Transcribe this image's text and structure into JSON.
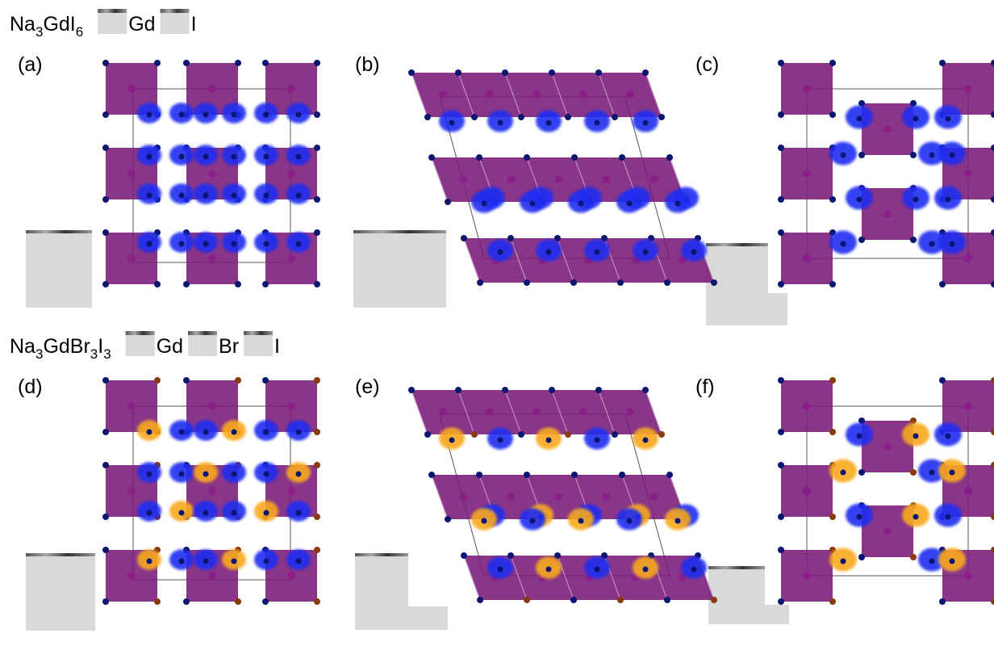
{
  "rows": [
    {
      "formula": [
        "Na",
        "3",
        "GdI",
        "6"
      ],
      "legend": [
        "Gd",
        "I"
      ],
      "panels": [
        "(a)",
        "(b)",
        "(c)"
      ]
    },
    {
      "formula": [
        "Na",
        "3",
        "GdBr",
        "3",
        "I",
        "3"
      ],
      "legend": [
        "Gd",
        "Br",
        "I"
      ],
      "panels": [
        "(d)",
        "(e)",
        "(f)"
      ]
    }
  ]
}
